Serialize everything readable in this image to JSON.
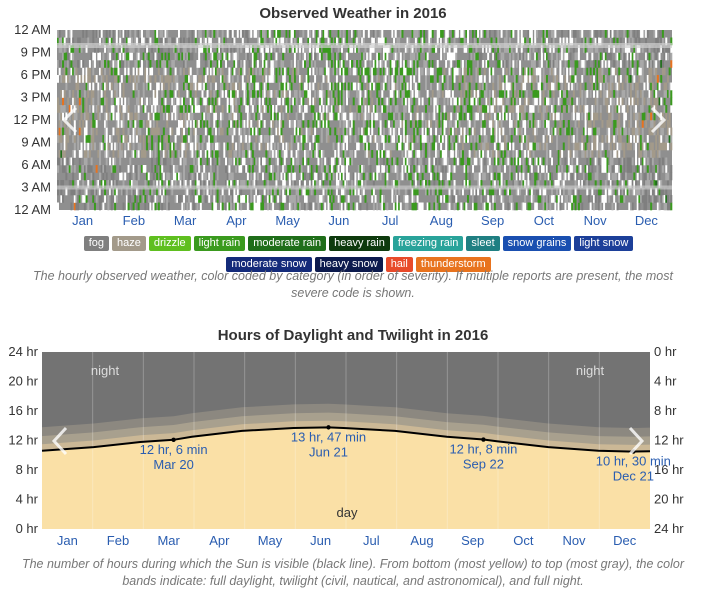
{
  "chart_data": [
    {
      "type": "heatmap",
      "title": "Observed Weather in 2016",
      "y_ticks": [
        "12 AM",
        "9 PM",
        "6 PM",
        "3 PM",
        "12 PM",
        "9 AM",
        "6 AM",
        "3 AM",
        "12 AM"
      ],
      "x_ticks": [
        "Jan",
        "Feb",
        "Mar",
        "Apr",
        "May",
        "Jun",
        "Jul",
        "Aug",
        "Sep",
        "Oct",
        "Nov",
        "Dec"
      ],
      "categories": [
        {
          "label": "fog",
          "color": "#7f7f7f"
        },
        {
          "label": "haze",
          "color": "#a39a8a"
        },
        {
          "label": "drizzle",
          "color": "#5fbf1f"
        },
        {
          "label": "light rain",
          "color": "#3a9a1e"
        },
        {
          "label": "moderate rain",
          "color": "#1f6e1a"
        },
        {
          "label": "heavy rain",
          "color": "#0e3a0d"
        },
        {
          "label": "freezing rain",
          "color": "#29a39a"
        },
        {
          "label": "sleet",
          "color": "#1f7f82"
        },
        {
          "label": "snow grains",
          "color": "#1a4fb0"
        },
        {
          "label": "light snow",
          "color": "#1c3f99"
        },
        {
          "label": "moderate snow",
          "color": "#142b7a"
        },
        {
          "label": "heavy snow",
          "color": "#0c1a4d"
        },
        {
          "label": "hail",
          "color": "#e84a2a"
        },
        {
          "label": "thunderstorm",
          "color": "#e8731e"
        }
      ],
      "caption": "The hourly observed weather, color coded by category (in order of severity). If multiple reports are present, the most severe code is shown."
    },
    {
      "type": "area",
      "title": "Hours of Daylight and Twilight in 2016",
      "x_ticks": [
        "Jan",
        "Feb",
        "Mar",
        "Apr",
        "May",
        "Jun",
        "Jul",
        "Aug",
        "Sep",
        "Oct",
        "Nov",
        "Dec"
      ],
      "y_left_ticks": [
        "24 hr",
        "20 hr",
        "16 hr",
        "12 hr",
        "8 hr",
        "4 hr",
        "0 hr"
      ],
      "y_right_ticks": [
        "0 hr",
        "4 hr",
        "8 hr",
        "12 hr",
        "16 hr",
        "20 hr",
        "24 hr"
      ],
      "ylim": [
        0,
        24
      ],
      "daylight_hours": [
        {
          "day": 1,
          "hours": 10.6
        },
        {
          "day": 32,
          "hours": 11.1
        },
        {
          "day": 60,
          "hours": 11.8
        },
        {
          "day": 80,
          "hours": 12.1
        },
        {
          "day": 91,
          "hours": 12.5
        },
        {
          "day": 121,
          "hours": 13.3
        },
        {
          "day": 152,
          "hours": 13.7
        },
        {
          "day": 173,
          "hours": 13.78
        },
        {
          "day": 182,
          "hours": 13.7
        },
        {
          "day": 213,
          "hours": 13.3
        },
        {
          "day": 244,
          "hours": 12.5
        },
        {
          "day": 266,
          "hours": 12.13
        },
        {
          "day": 274,
          "hours": 11.9
        },
        {
          "day": 305,
          "hours": 11.1
        },
        {
          "day": 335,
          "hours": 10.6
        },
        {
          "day": 356,
          "hours": 10.5
        },
        {
          "day": 366,
          "hours": 10.55
        }
      ],
      "annotations": [
        {
          "day": 80,
          "hours": 12.1,
          "line1": "12 hr, 6 min",
          "line2": "Mar 20"
        },
        {
          "day": 173,
          "hours": 13.78,
          "line1": "13 hr, 47 min",
          "line2": "Jun 21"
        },
        {
          "day": 266,
          "hours": 12.13,
          "line1": "12 hr, 8 min",
          "line2": "Sep 22"
        },
        {
          "day": 356,
          "hours": 10.5,
          "line1": "10 hr, 30 min",
          "line2": "Dec 21"
        }
      ],
      "band_labels": {
        "night_left": "night",
        "night_right": "night",
        "day": "day"
      },
      "colors": {
        "night": "#737373",
        "astronomical": "#8c8880",
        "nautical": "#a8a08e",
        "civil": "#cbb896",
        "day": "#fae0a6",
        "line": "#000000",
        "tick_text": "#2a5db0"
      },
      "caption": "The number of hours during which the Sun is visible (black line). From bottom (most yellow) to top (most gray), the color bands indicate: full daylight, twilight (civil, nautical, and astronomical), and full night."
    }
  ]
}
